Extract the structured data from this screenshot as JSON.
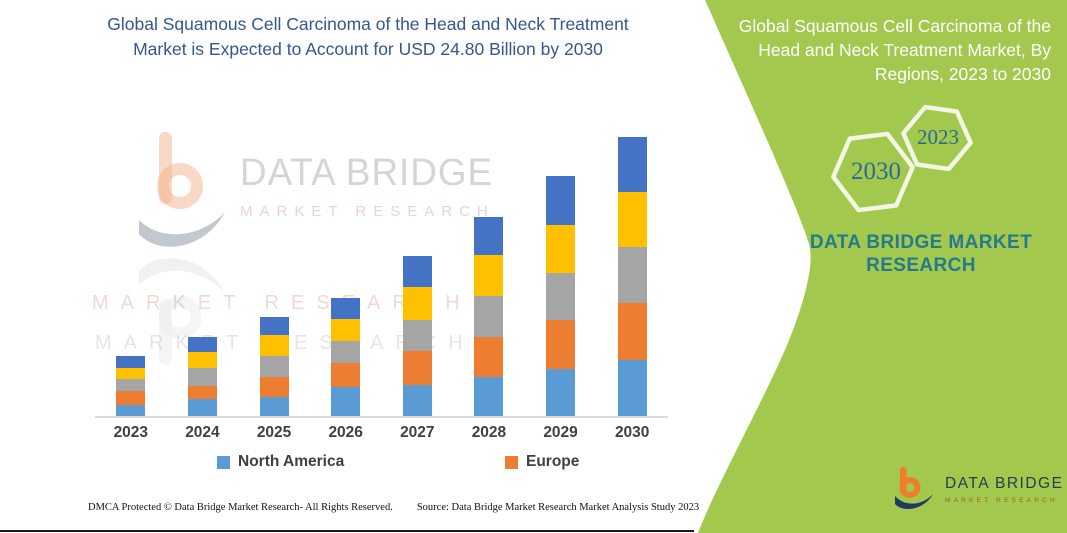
{
  "colors": {
    "panel_green": "#a3c84e",
    "title_blue": "#35568f",
    "brand_teal": "#257a8e",
    "axis_text": "#404040",
    "hex_outline": "#f2f6e2",
    "axis_line": "#d9d9d9"
  },
  "main": {
    "title": "Global Squamous Cell Carcinoma of the Head and Neck Treatment Market is Expected to Account for USD 24.80 Billion by 2030"
  },
  "panel": {
    "title": "Global Squamous Cell Carcinoma of the Head and Neck Treatment Market, By Regions, 2023 to 2030",
    "hexagons": [
      "2030",
      "2023"
    ],
    "brand_line1": "DATA BRIDGE MARKET",
    "brand_line2": "RESEARCH"
  },
  "watermark": {
    "brand": "DATA BRIDGE",
    "sub": "MARKET RESEARCH"
  },
  "logo": {
    "brand": "DATA BRIDGE",
    "sub": "MARKET RESEARCH"
  },
  "footer": {
    "dmca": "DMCA Protected © Data Bridge Market Research-  All Rights Reserved.",
    "source": "Source: Data Bridge Market Research  Market Analysis Study 2023"
  },
  "chart_data": {
    "type": "bar",
    "stacked": true,
    "unit": "USD Billion",
    "title": "Global Squamous Cell Carcinoma of the Head and Neck Treatment Market, By Regions, 2023 to 2030",
    "annotation": "2030 total = USD 24.80 Billion",
    "categories": [
      "2023",
      "2024",
      "2025",
      "2026",
      "2027",
      "2028",
      "2029",
      "2030"
    ],
    "series": [
      {
        "name": "North America",
        "color": "#5b9bd5",
        "values": [
          1.0,
          1.5,
          1.7,
          2.6,
          2.8,
          3.5,
          4.2,
          5.0
        ]
      },
      {
        "name": "Europe",
        "color": "#ed7d31",
        "values": [
          1.2,
          1.2,
          1.8,
          2.1,
          3.0,
          3.5,
          4.3,
          5.0
        ]
      },
      {
        "name": "Series 3 (gray, unlabeled)",
        "color": "#a5a5a5",
        "values": [
          1.1,
          1.6,
          1.8,
          2.0,
          2.7,
          3.7,
          4.2,
          5.0
        ]
      },
      {
        "name": "Series 4 (yellow, unlabeled)",
        "color": "#ffc000",
        "values": [
          1.0,
          1.4,
          1.9,
          1.9,
          3.0,
          3.6,
          4.3,
          4.9
        ]
      },
      {
        "name": "Series 5 (dark blue, unlabeled)",
        "color": "#4472c4",
        "values": [
          1.0,
          1.3,
          1.6,
          1.9,
          2.7,
          3.4,
          4.3,
          4.9
        ]
      }
    ],
    "totals": [
      5.3,
      7.0,
      8.8,
      10.5,
      14.2,
      17.7,
      21.3,
      24.8
    ],
    "legend": [
      "North America",
      "Europe"
    ],
    "legend_position": "bottom",
    "gridlines": false,
    "ylim": [
      0,
      26
    ]
  }
}
